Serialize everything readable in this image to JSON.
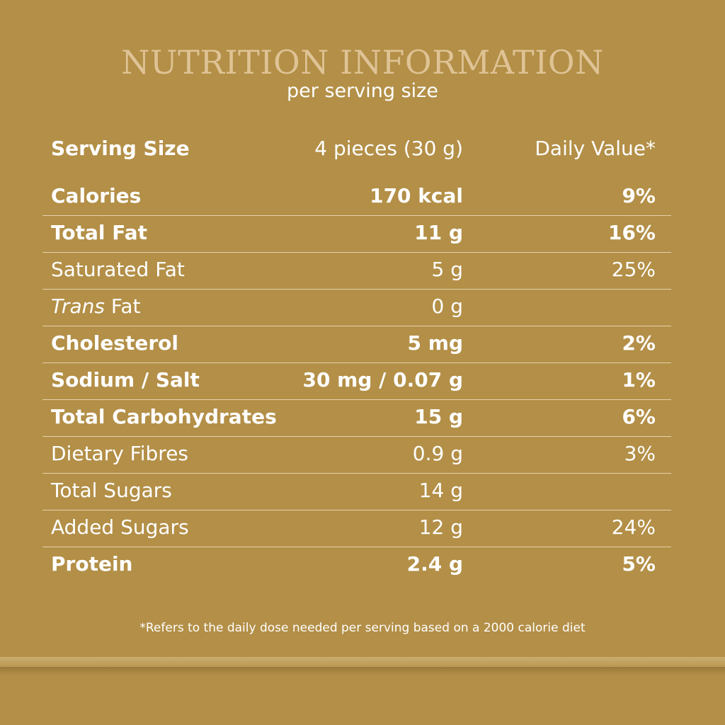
{
  "label": {
    "title": "NUTRITION INFORMATION",
    "subtitle": "per serving size",
    "header": {
      "name": "Serving Size",
      "amount": "4 pieces (30 g)",
      "daily_value": "Daily Value*"
    },
    "rows": [
      {
        "name": "Calories",
        "amount": "170 kcal",
        "dv": "9%"
      },
      {
        "name": "Total Fat",
        "amount": "11 g",
        "dv": "16%"
      },
      {
        "name": "Saturated Fat",
        "amount": "5 g",
        "dv": "25%"
      },
      {
        "name_italic": "Trans",
        "name_rest": " Fat",
        "amount": "0 g",
        "dv": ""
      },
      {
        "name": "Cholesterol",
        "amount": "5 mg",
        "dv": "2%"
      },
      {
        "name": "Sodium / Salt",
        "amount": "30 mg / 0.07 g",
        "dv": "1%"
      },
      {
        "name": "Total Carbohydrates",
        "amount": "15 g",
        "dv": "6%"
      },
      {
        "name": "Dietary Fibres",
        "amount": "0.9 g",
        "dv": "3%"
      },
      {
        "name": "Total Sugars",
        "amount": "14 g",
        "dv": ""
      },
      {
        "name": "Added Sugars",
        "amount": "12 g",
        "dv": "24%"
      },
      {
        "name": "Protein",
        "amount": "2.4 g",
        "dv": "5%"
      }
    ],
    "footnote": "*Refers to the daily dose needed per serving based on a 2000 calorie diet"
  },
  "colors": {
    "background": "#b38f47",
    "title": "#dfc395",
    "text": "#ffffff",
    "divider": "#e6d3ad"
  }
}
